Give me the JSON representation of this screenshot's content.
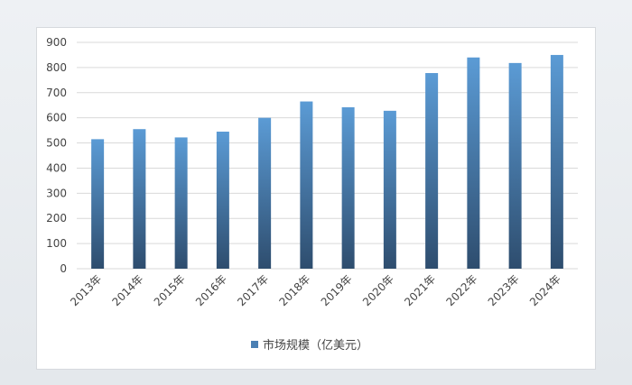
{
  "chart_data": {
    "type": "bar",
    "categories": [
      "2013年",
      "2014年",
      "2015年",
      "2016年",
      "2017年",
      "2018年",
      "2019年",
      "2020年",
      "2021年",
      "2022年",
      "2023年",
      "2024年"
    ],
    "series": [
      {
        "name": "市场规模（亿美元）",
        "values": [
          515,
          555,
          522,
          545,
          600,
          665,
          642,
          628,
          778,
          840,
          818,
          850
        ]
      }
    ],
    "yticks": [
      "0",
      "100",
      "200",
      "300",
      "400",
      "500",
      "600",
      "700",
      "800",
      "900"
    ],
    "ylim": [
      0,
      900
    ],
    "grid": true,
    "legend": "bottom",
    "colors": {
      "bar_top": "#5b9bd5",
      "bar_bottom": "#2e4d6e",
      "grid": "#d9d9d9"
    }
  }
}
